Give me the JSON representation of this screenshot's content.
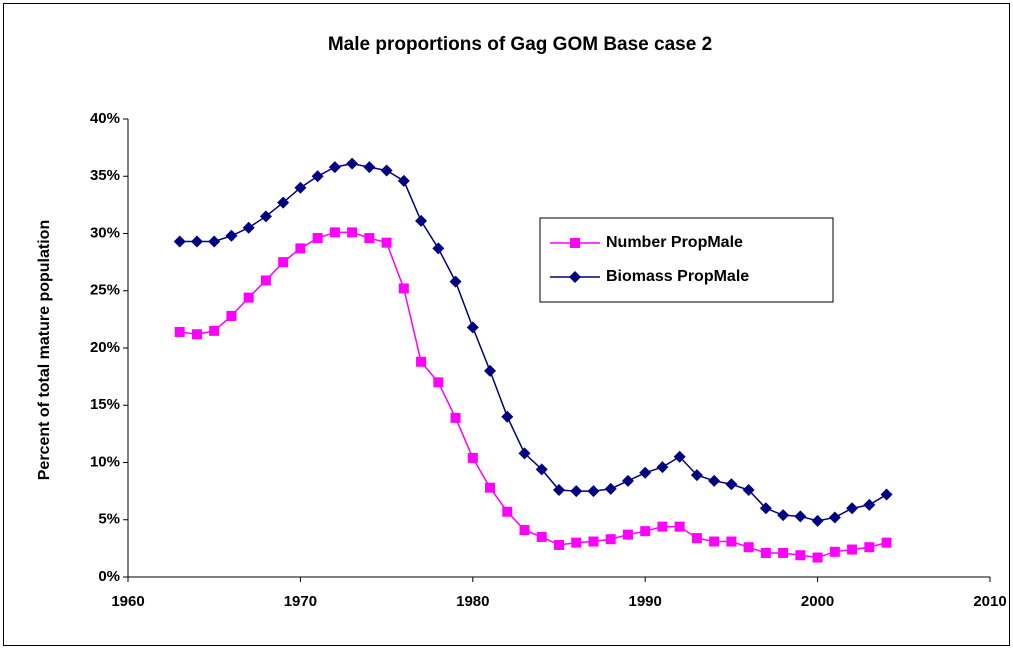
{
  "chart_data": {
    "type": "line",
    "title": "Male proportions of Gag GOM Base case 2",
    "y_label": "Percent of total mature population",
    "x": [
      1963,
      1964,
      1965,
      1966,
      1967,
      1968,
      1969,
      1970,
      1971,
      1972,
      1973,
      1974,
      1975,
      1976,
      1977,
      1978,
      1979,
      1980,
      1981,
      1982,
      1983,
      1984,
      1985,
      1986,
      1987,
      1988,
      1989,
      1990,
      1991,
      1992,
      1993,
      1994,
      1995,
      1996,
      1997,
      1998,
      1999,
      2000,
      2001,
      2002,
      2003,
      2004
    ],
    "series": [
      {
        "name": "Number PropMale",
        "color": "#ff00ff",
        "marker": "square",
        "values": [
          21.4,
          21.2,
          21.5,
          22.8,
          24.4,
          25.9,
          27.5,
          28.7,
          29.6,
          30.1,
          30.1,
          29.6,
          29.2,
          25.2,
          18.8,
          17.0,
          13.9,
          10.4,
          7.8,
          5.7,
          4.1,
          3.5,
          2.8,
          3.0,
          3.1,
          3.3,
          3.7,
          4.0,
          4.4,
          4.4,
          3.4,
          3.1,
          3.1,
          2.6,
          2.1,
          2.1,
          1.9,
          1.7,
          2.2,
          2.4,
          2.6,
          3.0
        ]
      },
      {
        "name": "Biomass PropMale",
        "color": "#000080",
        "marker": "diamond",
        "values": [
          29.3,
          29.3,
          29.3,
          29.8,
          30.5,
          31.5,
          32.7,
          34.0,
          35.0,
          35.8,
          36.1,
          35.8,
          35.5,
          34.6,
          31.1,
          28.7,
          25.8,
          21.8,
          18.0,
          14.0,
          10.8,
          9.4,
          7.6,
          7.5,
          7.5,
          7.7,
          8.4,
          9.1,
          9.6,
          10.5,
          8.9,
          8.4,
          8.1,
          7.6,
          6.0,
          5.4,
          5.3,
          4.9,
          5.2,
          6.0,
          6.3,
          7.2
        ]
      }
    ],
    "xlim": [
      1960,
      2010
    ],
    "xticks": [
      1960,
      1970,
      1980,
      1990,
      2000,
      2010
    ],
    "ylim": [
      0,
      40
    ],
    "yticks": [
      {
        "value": 0,
        "label": "0%"
      },
      {
        "value": 5,
        "label": "5%"
      },
      {
        "value": 10,
        "label": "10%"
      },
      {
        "value": 15,
        "label": "15%"
      },
      {
        "value": 20,
        "label": "20%"
      },
      {
        "value": 25,
        "label": "25%"
      },
      {
        "value": 30,
        "label": "30%"
      },
      {
        "value": 35,
        "label": "35%"
      },
      {
        "value": 40,
        "label": "40%"
      }
    ],
    "grid": false,
    "legend": "center-right"
  }
}
